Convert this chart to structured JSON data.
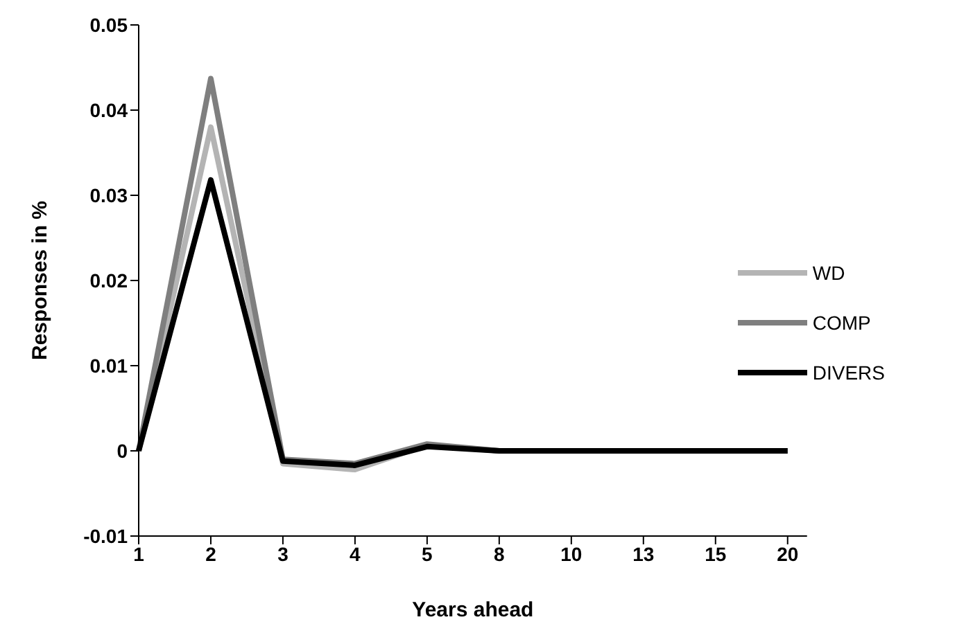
{
  "chart_data": {
    "type": "line",
    "xlabel": "Years ahead",
    "ylabel": "Responses in %",
    "categories": [
      "1",
      "2",
      "3",
      "4",
      "5",
      "8",
      "10",
      "13",
      "15",
      "20"
    ],
    "series": [
      {
        "name": "WD",
        "color": "#b4b4b4",
        "values": [
          0,
          0.038,
          -0.0015,
          -0.0022,
          0.0007,
          0,
          0,
          0,
          0,
          0
        ]
      },
      {
        "name": "COMP",
        "color": "#7f7f7f",
        "values": [
          0,
          0.0437,
          -0.001,
          -0.0015,
          0.0008,
          0,
          0,
          0,
          0,
          0
        ]
      },
      {
        "name": "DIVERS",
        "color": "#000000",
        "values": [
          0,
          0.0318,
          -0.0012,
          -0.0017,
          0.0005,
          0,
          0,
          0,
          0,
          0
        ]
      }
    ],
    "ylim": [
      -0.01,
      0.05
    ],
    "yticks": [
      {
        "value": -0.01,
        "label": "-0.01"
      },
      0,
      0.01,
      0.02,
      0.03,
      0.04,
      0.05
    ],
    "grid": false,
    "legend": "right",
    "marker": "none"
  }
}
